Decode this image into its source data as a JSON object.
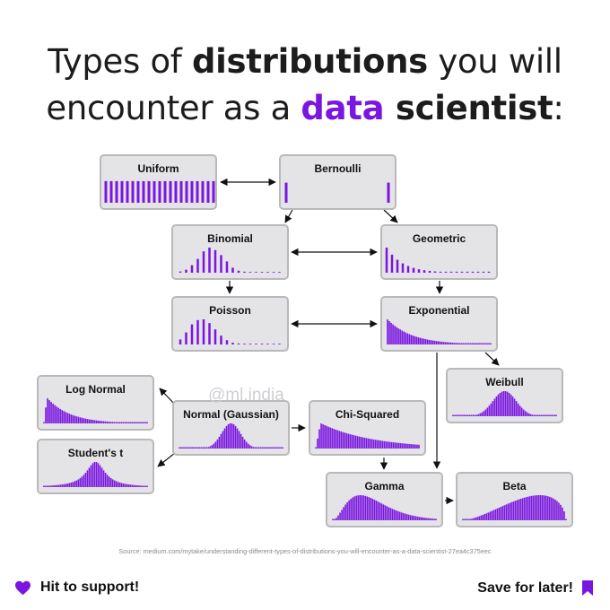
{
  "title": {
    "line1": {
      "pre": "Types of ",
      "bold": "distributions",
      "post": " you will"
    },
    "line2": {
      "pre": "encounter as a ",
      "accent": "data",
      "bold": " scientist",
      "post": ":"
    }
  },
  "nodes": [
    {
      "id": "uniform",
      "label": "Uniform"
    },
    {
      "id": "bernoulli",
      "label": "Bernoulli"
    },
    {
      "id": "binomial",
      "label": "Binomial"
    },
    {
      "id": "geometric",
      "label": "Geometric"
    },
    {
      "id": "poisson",
      "label": "Poisson"
    },
    {
      "id": "exponential",
      "label": "Exponential"
    },
    {
      "id": "weibull",
      "label": "Weibull"
    },
    {
      "id": "lognormal",
      "label": "Log Normal"
    },
    {
      "id": "normal",
      "label": "Normal (Gaussian)"
    },
    {
      "id": "chisquared",
      "label": "Chi-Squared"
    },
    {
      "id": "studentst",
      "label": "Student's t"
    },
    {
      "id": "gamma",
      "label": "Gamma"
    },
    {
      "id": "beta",
      "label": "Beta"
    }
  ],
  "edges": [
    {
      "from": "uniform",
      "to": "bernoulli",
      "type": "both"
    },
    {
      "from": "bernoulli",
      "to": "binomial",
      "type": "one"
    },
    {
      "from": "bernoulli",
      "to": "geometric",
      "type": "one"
    },
    {
      "from": "binomial",
      "to": "geometric",
      "type": "both"
    },
    {
      "from": "binomial",
      "to": "poisson",
      "type": "one"
    },
    {
      "from": "geometric",
      "to": "exponential",
      "type": "one"
    },
    {
      "from": "poisson",
      "to": "exponential",
      "type": "both"
    },
    {
      "from": "exponential",
      "to": "weibull",
      "type": "one"
    },
    {
      "from": "exponential",
      "to": "gamma",
      "type": "one"
    },
    {
      "from": "normal",
      "to": "lognormal",
      "type": "one"
    },
    {
      "from": "normal",
      "to": "studentst",
      "type": "one"
    },
    {
      "from": "normal",
      "to": "chisquared",
      "type": "one"
    },
    {
      "from": "chisquared",
      "to": "gamma",
      "type": "one"
    },
    {
      "from": "gamma",
      "to": "beta",
      "type": "one"
    }
  ],
  "watermark": "@ml.india",
  "source": "Source: medium.com/mytake/understanding-different-types-of-distributions-you-will-encounter-as-a-data-scientist-27ea4c375eec",
  "footer": {
    "left": "Hit to support!",
    "right": "Save for later!"
  },
  "colors": {
    "accent": "#7a16e0",
    "bar": "#7a16e0",
    "box": "#e4e4e6",
    "border": "#b9b9bd"
  },
  "icons": {
    "left": "heart-icon",
    "right": "bookmark-icon"
  }
}
